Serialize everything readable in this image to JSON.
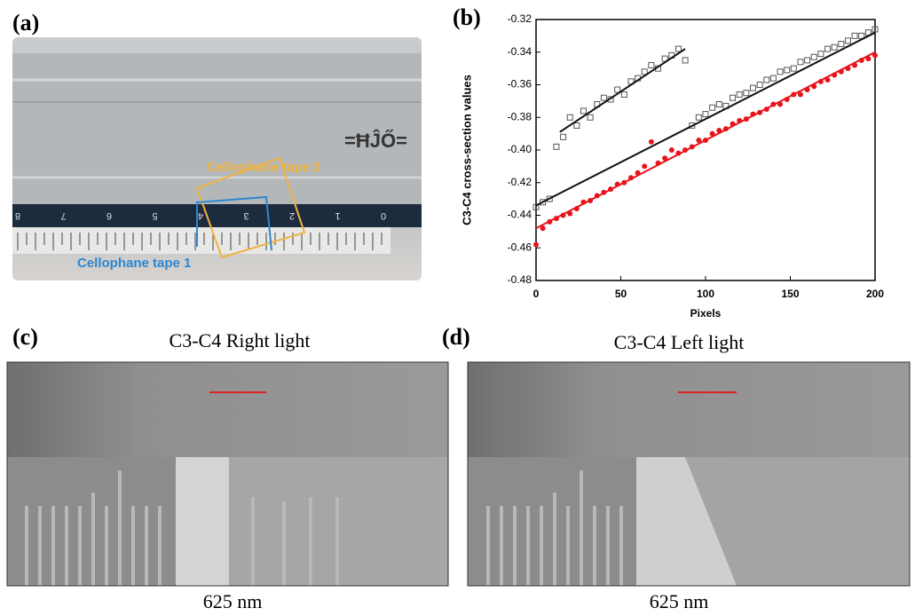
{
  "panels": {
    "a": {
      "label": "(a)",
      "tape2": "Cellophane tape 2",
      "tape1": "Cellophane tape 1",
      "ruler_labels": [
        "8",
        "7",
        "6",
        "5",
        "4",
        "3",
        "2",
        "1",
        "0"
      ]
    },
    "c": {
      "label": "(c)",
      "title": "C3-C4 Right light",
      "scale": "625 nm"
    },
    "d": {
      "label": "(d)",
      "title": "C3-C4 Left light",
      "scale": "625 nm"
    }
  },
  "chart_data": {
    "type": "scatter",
    "label": "(b)",
    "xlabel": "Pixels",
    "ylabel": "C3-C4 cross-section values",
    "xlim": [
      0,
      200
    ],
    "ylim": [
      -0.48,
      -0.32
    ],
    "xticks": [
      0,
      50,
      100,
      150,
      200
    ],
    "yticks": [
      -0.48,
      -0.46,
      -0.44,
      -0.42,
      {
        "value": -0.4,
        "label": "-0.40"
      },
      -0.38,
      -0.36,
      -0.34,
      -0.32
    ],
    "x": [
      0,
      4,
      8,
      12,
      16,
      20,
      24,
      28,
      32,
      36,
      40,
      44,
      48,
      52,
      56,
      60,
      64,
      68,
      72,
      76,
      80,
      84,
      88,
      92,
      96,
      100,
      104,
      108,
      112,
      116,
      120,
      124,
      128,
      132,
      136,
      140,
      144,
      148,
      152,
      156,
      160,
      164,
      168,
      172,
      176,
      180,
      184,
      188,
      192,
      196,
      200
    ],
    "series": [
      {
        "color": "#555555",
        "marker": "open-square",
        "values": [
          -0.435,
          -0.432,
          -0.43,
          -0.398,
          -0.392,
          -0.38,
          -0.385,
          -0.376,
          -0.38,
          -0.372,
          -0.368,
          -0.369,
          -0.363,
          -0.366,
          -0.358,
          -0.356,
          -0.352,
          -0.348,
          -0.35,
          -0.344,
          -0.342,
          -0.338,
          -0.345,
          -0.385,
          -0.38,
          -0.378,
          -0.374,
          -0.372,
          -0.373,
          -0.368,
          -0.366,
          -0.365,
          -0.362,
          -0.36,
          -0.357,
          -0.356,
          -0.352,
          -0.351,
          -0.35,
          -0.346,
          -0.345,
          -0.343,
          -0.341,
          -0.338,
          -0.337,
          -0.335,
          -0.333,
          -0.33,
          -0.33,
          -0.328,
          -0.326
        ]
      },
      {
        "color": "#e8141b",
        "marker": "filled-circle",
        "values": [
          -0.458,
          -0.448,
          -0.444,
          -0.442,
          -0.44,
          -0.439,
          -0.436,
          -0.432,
          -0.431,
          -0.428,
          -0.426,
          -0.424,
          -0.421,
          -0.42,
          -0.417,
          -0.414,
          -0.41,
          -0.395,
          -0.408,
          -0.405,
          -0.4,
          -0.402,
          -0.4,
          -0.398,
          -0.394,
          -0.394,
          -0.39,
          -0.388,
          -0.387,
          -0.384,
          -0.382,
          -0.381,
          -0.378,
          -0.377,
          -0.375,
          -0.372,
          -0.372,
          -0.369,
          -0.366,
          -0.366,
          -0.363,
          -0.361,
          -0.358,
          -0.357,
          -0.354,
          -0.352,
          -0.35,
          -0.348,
          -0.345,
          -0.344,
          -0.342
        ]
      }
    ],
    "fits": [
      {
        "color": "#111111",
        "x": [
          14,
          88
        ],
        "values": [
          -0.389,
          -0.338
        ]
      },
      {
        "color": "#111111",
        "x": [
          0,
          200
        ],
        "values": [
          -0.434,
          -0.328
        ]
      },
      {
        "color": "#e8141b",
        "x": [
          0,
          200
        ],
        "values": [
          -0.448,
          -0.34
        ]
      }
    ]
  }
}
